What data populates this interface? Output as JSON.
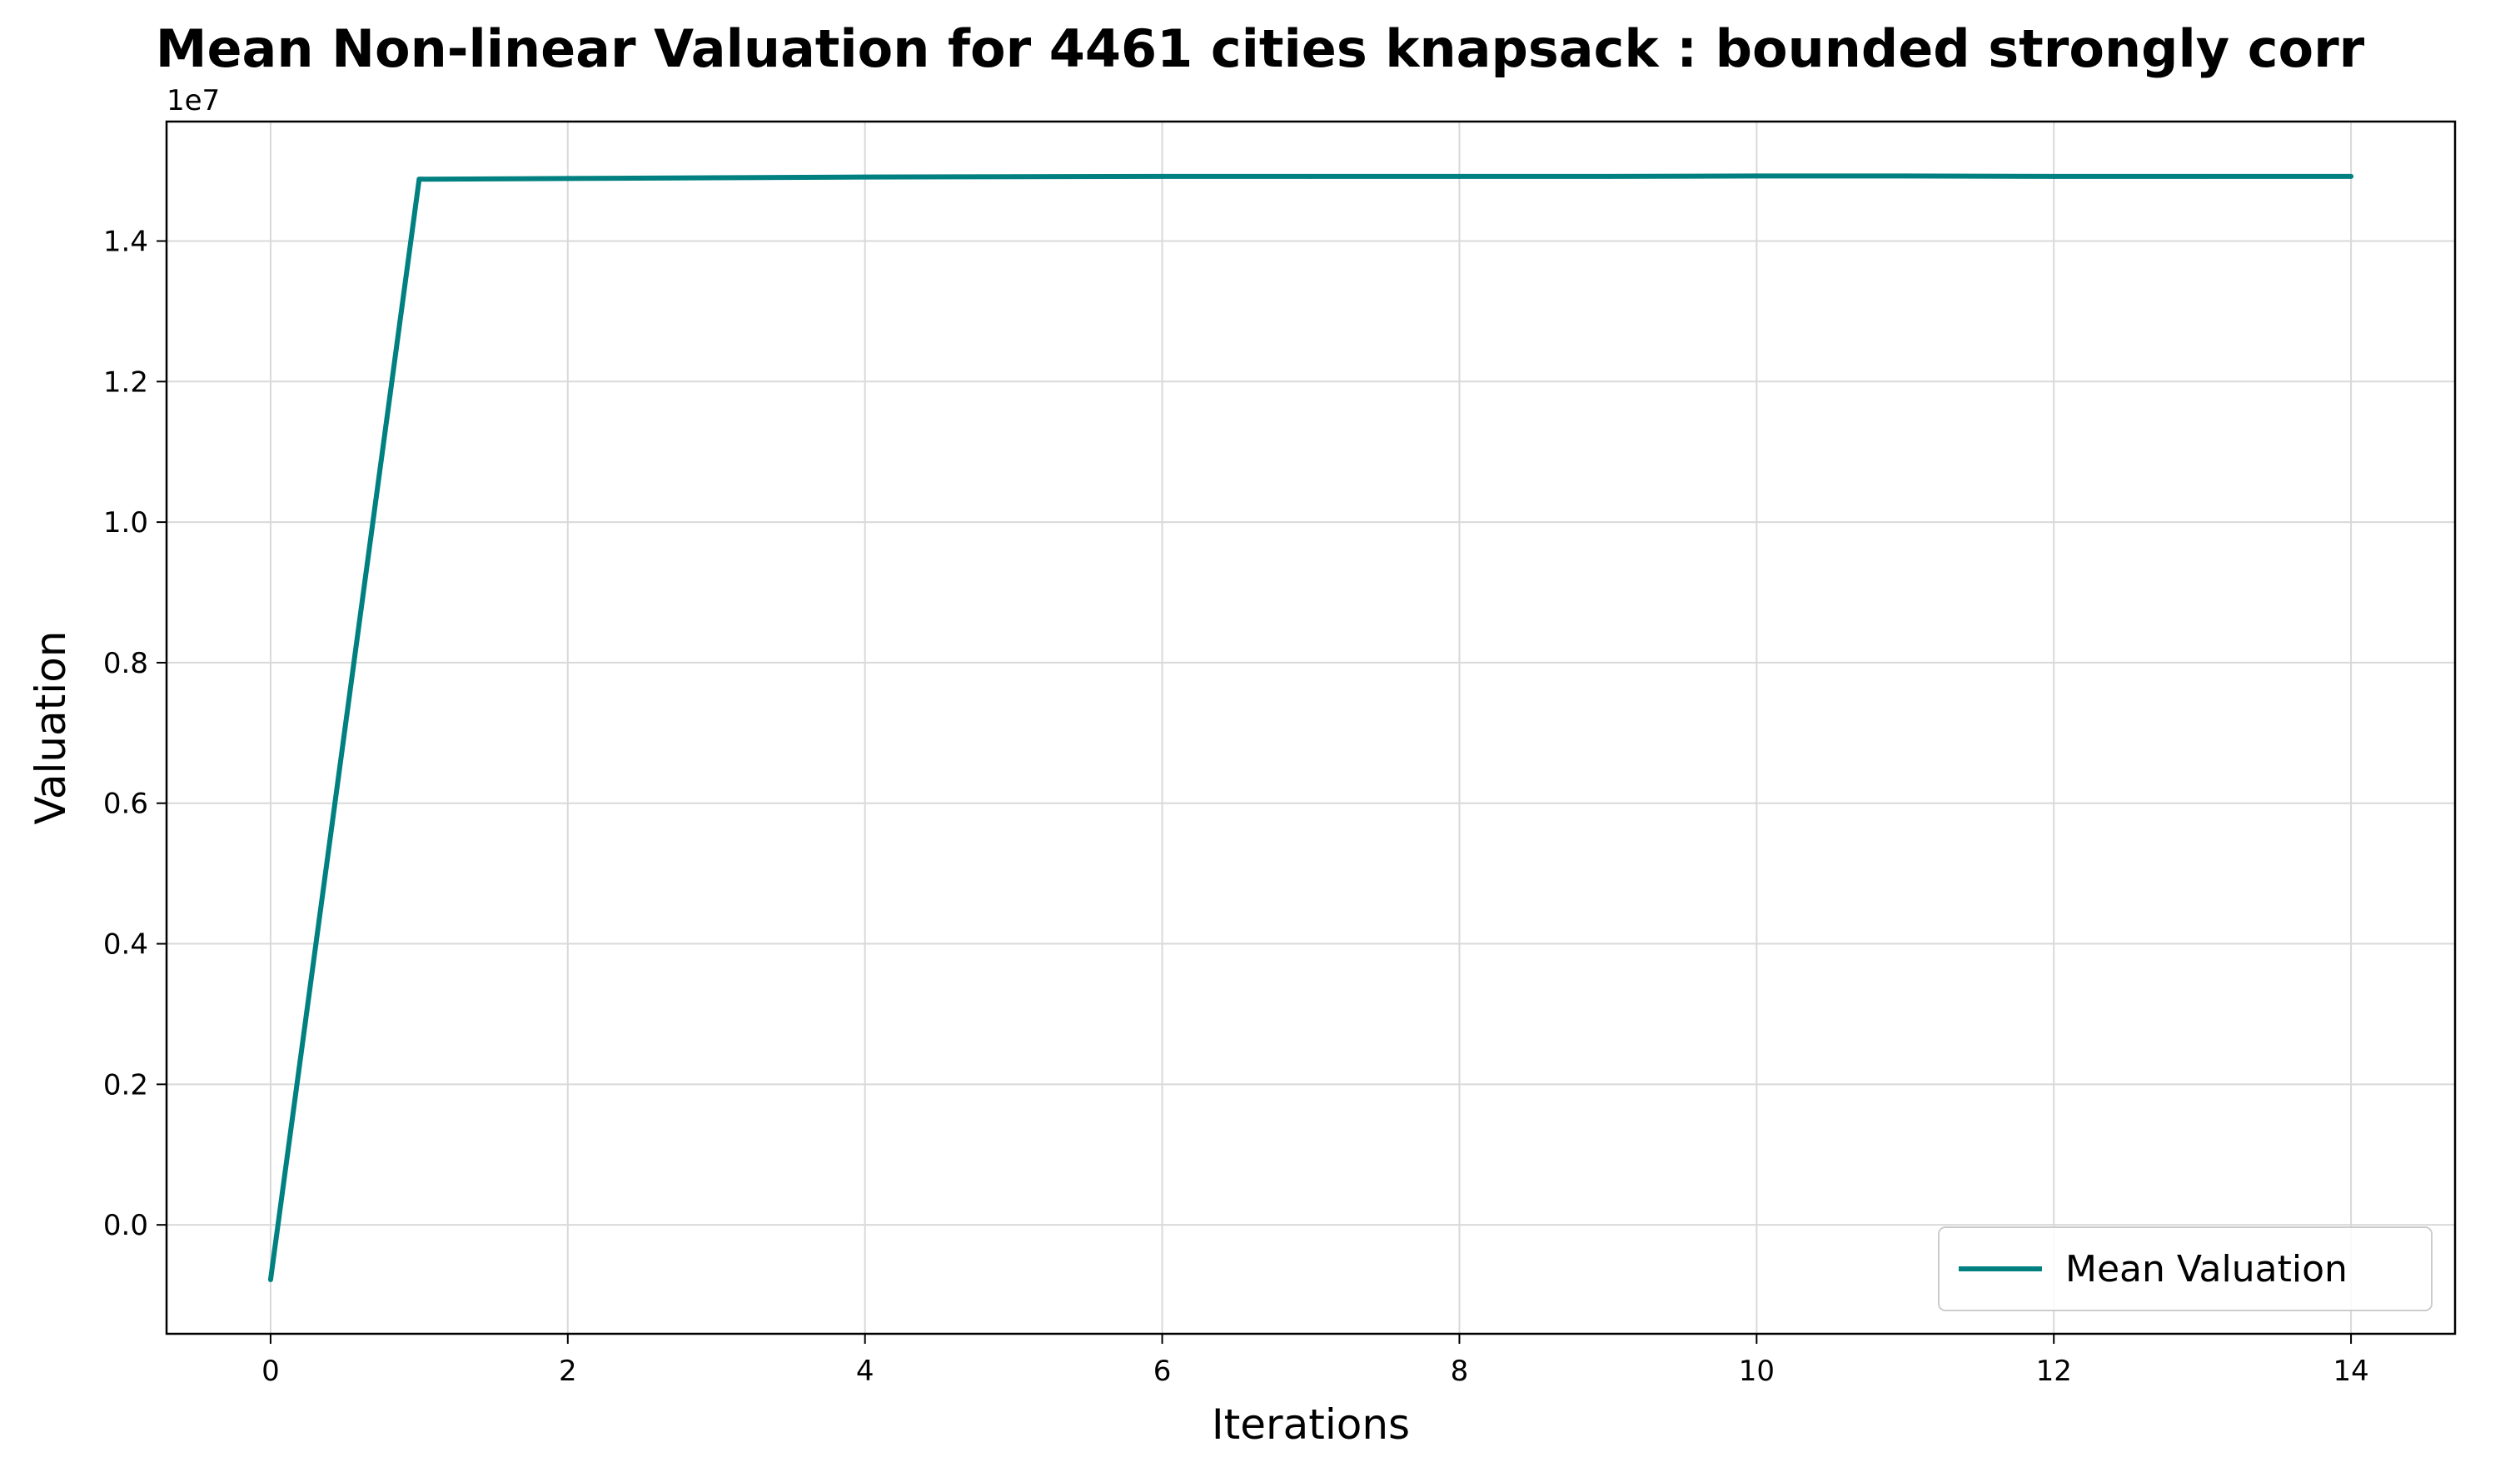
{
  "chart_data": {
    "type": "line",
    "title": "Mean Non-linear Valuation for 4461 cities knapsack : bounded strongly corr",
    "xlabel": "Iterations",
    "ylabel": "Valuation",
    "y_offset_label": "1e7",
    "xlim": [
      -0.7,
      14.7
    ],
    "ylim": [
      -1550000,
      15700000
    ],
    "x_ticks": [
      0,
      2,
      4,
      6,
      8,
      10,
      12,
      14
    ],
    "x_tick_labels": [
      "0",
      "2",
      "4",
      "6",
      "8",
      "10",
      "12",
      "14"
    ],
    "y_ticks": [
      0,
      2000000,
      4000000,
      6000000,
      8000000,
      10000000,
      12000000,
      14000000
    ],
    "y_tick_labels": [
      "0.0",
      "0.2",
      "0.4",
      "0.6",
      "0.8",
      "1.0",
      "1.2",
      "1.4"
    ],
    "grid": true,
    "legend_position": "lower-right",
    "series": [
      {
        "name": "Mean Valuation",
        "color": "#008080",
        "x": [
          0,
          1,
          2,
          3,
          4,
          5,
          6,
          7,
          8,
          9,
          10,
          11,
          12,
          13,
          14
        ],
        "values": [
          -780000,
          14880000,
          14890000,
          14900000,
          14910000,
          14915000,
          14920000,
          14920000,
          14920000,
          14920000,
          14925000,
          14925000,
          14920000,
          14920000,
          14920000
        ]
      }
    ]
  }
}
